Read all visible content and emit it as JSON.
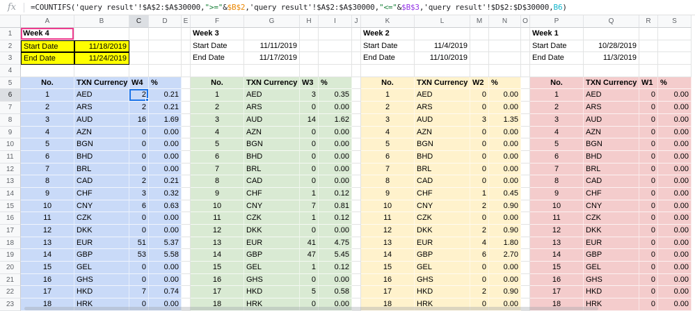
{
  "formula_bar": {
    "fx_label": "fx",
    "segments": [
      {
        "t": "=COUNTIFS('query result'!$A$2:$A$30000,",
        "c": "#202124"
      },
      {
        "t": "\">=\"",
        "c": "#188038"
      },
      {
        "t": "&",
        "c": "#202124"
      },
      {
        "t": "$B$2",
        "c": "#ea8600"
      },
      {
        "t": ",'query result'!$A$2:$A$30000,",
        "c": "#202124"
      },
      {
        "t": "\"<=\"",
        "c": "#188038"
      },
      {
        "t": "&",
        "c": "#202124"
      },
      {
        "t": "$B$3",
        "c": "#9334e6"
      },
      {
        "t": ",'query result'!$D$2:$D$30000,",
        "c": "#202124"
      },
      {
        "t": "B6",
        "c": "#12b5cb"
      },
      {
        "t": ")",
        "c": "#202124"
      }
    ]
  },
  "grid": {
    "column_headers": [
      "A",
      "B",
      "C",
      "D",
      "E",
      "F",
      "G",
      "H",
      "I",
      "J",
      "K",
      "L",
      "M",
      "N",
      "O",
      "P",
      "Q",
      "R",
      "S"
    ],
    "row_numbers": [
      1,
      2,
      3,
      4,
      5,
      6,
      7,
      8,
      9,
      10,
      11,
      12,
      13,
      14,
      15,
      16,
      17,
      18,
      19,
      20,
      21,
      22,
      23
    ],
    "selection": {
      "cell": "C6",
      "column": "C",
      "row": 6,
      "color": "#1a73e8"
    }
  },
  "weeks": [
    {
      "title": "Week 4",
      "start_label": "Start Date",
      "start_date": "11/18/2019",
      "end_label": "End Date",
      "end_date": "11/24/2019",
      "headers": [
        "No.",
        "TXN Currency",
        "W4",
        "%"
      ],
      "fill": "#c9daf8",
      "dates_highlighted": true,
      "date_highlight_color": "#ffff00",
      "title_outlined": true,
      "title_outline_color": "#ee3d8f",
      "rows": [
        [
          "1",
          "AED",
          "2",
          "0.21"
        ],
        [
          "2",
          "ARS",
          "2",
          "0.21"
        ],
        [
          "3",
          "AUD",
          "16",
          "1.69"
        ],
        [
          "4",
          "AZN",
          "0",
          "0.00"
        ],
        [
          "5",
          "BGN",
          "0",
          "0.00"
        ],
        [
          "6",
          "BHD",
          "0",
          "0.00"
        ],
        [
          "7",
          "BRL",
          "0",
          "0.00"
        ],
        [
          "8",
          "CAD",
          "2",
          "0.21"
        ],
        [
          "9",
          "CHF",
          "3",
          "0.32"
        ],
        [
          "10",
          "CNY",
          "6",
          "0.63"
        ],
        [
          "11",
          "CZK",
          "0",
          "0.00"
        ],
        [
          "12",
          "DKK",
          "0",
          "0.00"
        ],
        [
          "13",
          "EUR",
          "51",
          "5.37"
        ],
        [
          "14",
          "GBP",
          "53",
          "5.58"
        ],
        [
          "15",
          "GEL",
          "0",
          "0.00"
        ],
        [
          "16",
          "GHS",
          "0",
          "0.00"
        ],
        [
          "17",
          "HKD",
          "7",
          "0.74"
        ],
        [
          "18",
          "HRK",
          "0",
          "0.00"
        ]
      ]
    },
    {
      "title": "Week 3",
      "start_label": "Start Date",
      "start_date": "11/11/2019",
      "end_label": "End Date",
      "end_date": "11/17/2019",
      "headers": [
        "No.",
        "TXN Currency",
        "W3",
        "%"
      ],
      "fill": "#d9ead3",
      "dates_highlighted": false,
      "title_outlined": false,
      "rows": [
        [
          "1",
          "AED",
          "3",
          "0.35"
        ],
        [
          "2",
          "ARS",
          "0",
          "0.00"
        ],
        [
          "3",
          "AUD",
          "14",
          "1.62"
        ],
        [
          "4",
          "AZN",
          "0",
          "0.00"
        ],
        [
          "5",
          "BGN",
          "0",
          "0.00"
        ],
        [
          "6",
          "BHD",
          "0",
          "0.00"
        ],
        [
          "7",
          "BRL",
          "0",
          "0.00"
        ],
        [
          "8",
          "CAD",
          "0",
          "0.00"
        ],
        [
          "9",
          "CHF",
          "1",
          "0.12"
        ],
        [
          "10",
          "CNY",
          "7",
          "0.81"
        ],
        [
          "11",
          "CZK",
          "1",
          "0.12"
        ],
        [
          "12",
          "DKK",
          "0",
          "0.00"
        ],
        [
          "13",
          "EUR",
          "41",
          "4.75"
        ],
        [
          "14",
          "GBP",
          "47",
          "5.45"
        ],
        [
          "15",
          "GEL",
          "1",
          "0.12"
        ],
        [
          "16",
          "GHS",
          "0",
          "0.00"
        ],
        [
          "17",
          "HKD",
          "5",
          "0.58"
        ],
        [
          "18",
          "HRK",
          "0",
          "0.00"
        ]
      ]
    },
    {
      "title": "Week 2",
      "start_label": "Start Date",
      "start_date": "11/4/2019",
      "end_label": "End Date",
      "end_date": "11/10/2019",
      "headers": [
        "No.",
        "TXN Currency",
        "W2",
        "%"
      ],
      "fill": "#fff2cc",
      "dates_highlighted": false,
      "title_outlined": false,
      "rows": [
        [
          "1",
          "AED",
          "0",
          "0.00"
        ],
        [
          "2",
          "ARS",
          "0",
          "0.00"
        ],
        [
          "3",
          "AUD",
          "3",
          "1.35"
        ],
        [
          "4",
          "AZN",
          "0",
          "0.00"
        ],
        [
          "5",
          "BGN",
          "0",
          "0.00"
        ],
        [
          "6",
          "BHD",
          "0",
          "0.00"
        ],
        [
          "7",
          "BRL",
          "0",
          "0.00"
        ],
        [
          "8",
          "CAD",
          "0",
          "0.00"
        ],
        [
          "9",
          "CHF",
          "1",
          "0.45"
        ],
        [
          "10",
          "CNY",
          "2",
          "0.90"
        ],
        [
          "11",
          "CZK",
          "0",
          "0.00"
        ],
        [
          "12",
          "DKK",
          "2",
          "0.90"
        ],
        [
          "13",
          "EUR",
          "4",
          "1.80"
        ],
        [
          "14",
          "GBP",
          "6",
          "2.70"
        ],
        [
          "15",
          "GEL",
          "0",
          "0.00"
        ],
        [
          "16",
          "GHS",
          "0",
          "0.00"
        ],
        [
          "17",
          "HKD",
          "2",
          "0.90"
        ],
        [
          "18",
          "HRK",
          "0",
          "0.00"
        ]
      ]
    },
    {
      "title": "Week 1",
      "start_label": "Start Date",
      "start_date": "10/28/2019",
      "end_label": "End Date",
      "end_date": "11/3/2019",
      "headers": [
        "No.",
        "TXN Currency",
        "W1",
        "%"
      ],
      "fill": "#f4cccc",
      "dates_highlighted": false,
      "title_outlined": false,
      "rows": [
        [
          "1",
          "AED",
          "0",
          "0.00"
        ],
        [
          "2",
          "ARS",
          "0",
          "0.00"
        ],
        [
          "3",
          "AUD",
          "0",
          "0.00"
        ],
        [
          "4",
          "AZN",
          "0",
          "0.00"
        ],
        [
          "5",
          "BGN",
          "0",
          "0.00"
        ],
        [
          "6",
          "BHD",
          "0",
          "0.00"
        ],
        [
          "7",
          "BRL",
          "0",
          "0.00"
        ],
        [
          "8",
          "CAD",
          "0",
          "0.00"
        ],
        [
          "9",
          "CHF",
          "0",
          "0.00"
        ],
        [
          "10",
          "CNY",
          "0",
          "0.00"
        ],
        [
          "11",
          "CZK",
          "0",
          "0.00"
        ],
        [
          "12",
          "DKK",
          "0",
          "0.00"
        ],
        [
          "13",
          "EUR",
          "0",
          "0.00"
        ],
        [
          "14",
          "GBP",
          "0",
          "0.00"
        ],
        [
          "15",
          "GEL",
          "0",
          "0.00"
        ],
        [
          "16",
          "GHS",
          "0",
          "0.00"
        ],
        [
          "17",
          "HKD",
          "0",
          "0.00"
        ],
        [
          "18",
          "HRK",
          "0",
          "0.00"
        ]
      ]
    }
  ]
}
